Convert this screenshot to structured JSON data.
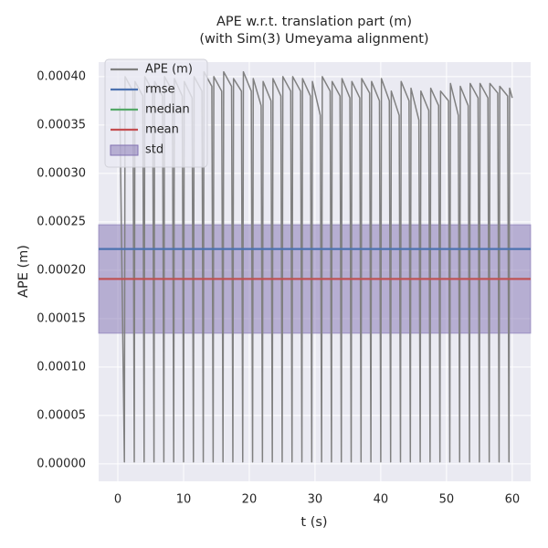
{
  "chart_data": {
    "type": "line",
    "title": "APE w.r.t. translation part (m)",
    "subtitle": "(with Sim(3) Umeyama alignment)",
    "xlabel": "t (s)",
    "ylabel": "APE (m)",
    "xlim": [
      -2.92,
      62.8
    ],
    "ylim": [
      -1.8e-05,
      0.000415
    ],
    "xticks": [
      0,
      10,
      20,
      30,
      40,
      50,
      60
    ],
    "yticks": [
      {
        "value": 0,
        "label": "0.00000"
      },
      {
        "value": 5e-05,
        "label": "0.00005"
      },
      {
        "value": 0.0001,
        "label": "0.00010"
      },
      {
        "value": 0.00015,
        "label": "0.00015"
      },
      {
        "value": 0.0002,
        "label": "0.00020"
      },
      {
        "value": 0.00025,
        "label": "0.00025"
      },
      {
        "value": 0.0003,
        "label": "0.00030"
      },
      {
        "value": 0.00035,
        "label": "0.00035"
      },
      {
        "value": 0.0004,
        "label": "0.00040"
      }
    ],
    "grid": true,
    "legend": "upper left",
    "series": [
      {
        "name": "APE (m)",
        "color": "#808080",
        "x": [
          0.3,
          1.0,
          1.1,
          2.3,
          2.5,
          2.6,
          3.8,
          4.0,
          4.1,
          5.3,
          5.5,
          5.6,
          6.8,
          7.0,
          7.1,
          8.3,
          8.5,
          8.6,
          9.8,
          10.0,
          10.1,
          11.3,
          11.5,
          11.6,
          12.8,
          13.0,
          13.1,
          14.3,
          14.5,
          14.6,
          15.8,
          16.0,
          16.1,
          17.3,
          17.5,
          17.6,
          18.8,
          19.0,
          19.1,
          20.3,
          20.5,
          20.6,
          21.8,
          22.0,
          22.1,
          23.3,
          23.5,
          23.6,
          24.8,
          25.0,
          25.1,
          26.3,
          26.5,
          26.6,
          27.8,
          28.0,
          28.1,
          29.3,
          29.5,
          29.6,
          30.8,
          31.0,
          31.1,
          32.3,
          32.5,
          32.6,
          33.8,
          34.0,
          34.1,
          35.3,
          35.5,
          35.6,
          36.8,
          37.0,
          37.1,
          38.3,
          38.5,
          38.6,
          39.8,
          40.0,
          40.1,
          41.3,
          41.5,
          41.6,
          42.8,
          43.0,
          43.1,
          44.3,
          44.5,
          44.6,
          45.8,
          46.0,
          46.1,
          47.3,
          47.5,
          47.6,
          48.8,
          49.0,
          49.1,
          50.3,
          50.5,
          50.6,
          51.8,
          52.0,
          52.1,
          53.3,
          53.5,
          53.6,
          54.8,
          55.0,
          55.1,
          56.3,
          56.5,
          56.6,
          57.8,
          58.0,
          58.1,
          59.3,
          59.5,
          59.6,
          60.0
        ],
        "values": [
          0.00037,
          2e-06,
          0.0004,
          0.000385,
          2e-06,
          0.000395,
          0.00038,
          2e-06,
          0.0004,
          0.000385,
          2e-06,
          0.000395,
          0.00038,
          2e-06,
          0.0004,
          0.000385,
          2e-06,
          0.000398,
          0.00038,
          2e-06,
          0.000395,
          0.000378,
          2e-06,
          0.0004,
          0.000385,
          2e-06,
          0.000405,
          0.00039,
          2e-06,
          0.0004,
          0.000385,
          2e-06,
          0.000405,
          0.00039,
          2e-06,
          0.000398,
          0.000385,
          2e-06,
          0.000405,
          0.000385,
          2e-06,
          0.000398,
          0.00037,
          2e-06,
          0.000395,
          0.000375,
          2e-06,
          0.000398,
          0.00038,
          2e-06,
          0.0004,
          0.000385,
          2e-06,
          0.0004,
          0.000385,
          2e-06,
          0.000398,
          0.00038,
          2e-06,
          0.000395,
          0.00036,
          2e-06,
          0.0004,
          0.000385,
          2e-06,
          0.000395,
          0.00038,
          2e-06,
          0.000398,
          0.000378,
          2e-06,
          0.000395,
          0.000378,
          2e-06,
          0.000398,
          0.000383,
          2e-06,
          0.000395,
          0.000375,
          2e-06,
          0.000398,
          0.000375,
          2e-06,
          0.000385,
          0.00036,
          2e-06,
          0.000395,
          0.000375,
          2e-06,
          0.000388,
          0.000355,
          2e-06,
          0.000385,
          0.000365,
          2e-06,
          0.000388,
          0.00037,
          2e-06,
          0.000385,
          0.000375,
          2e-06,
          0.000393,
          0.00036,
          2e-06,
          0.00039,
          0.00037,
          2e-06,
          0.000393,
          0.000378,
          2e-06,
          0.000393,
          0.000378,
          2e-06,
          0.000393,
          0.000383,
          2e-06,
          0.00039,
          0.00038,
          2e-06,
          0.000388,
          0.000378
        ]
      }
    ],
    "hlines": [
      {
        "name": "rmse",
        "color": "#4c72b0",
        "value": 0.000222
      },
      {
        "name": "median",
        "color": "#55a868",
        "value": 0.000191
      },
      {
        "name": "mean",
        "color": "#c44e52",
        "value": 0.000191
      }
    ],
    "std": {
      "name": "std",
      "color": "#8172b2",
      "value": 5.6e-05
    }
  }
}
